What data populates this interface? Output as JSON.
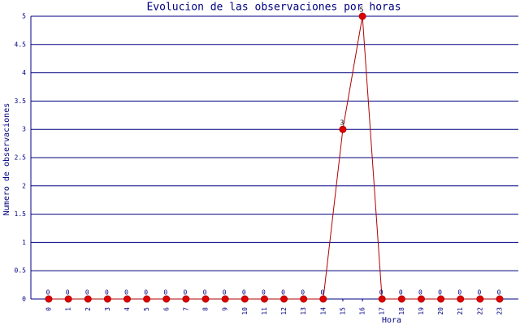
{
  "chart_data": {
    "type": "line",
    "title": "Evolucion de las observaciones por horas",
    "x_label": "Hora",
    "y_label": "Numero de observaciones",
    "categories": [
      "0",
      "1",
      "2",
      "3",
      "4",
      "5",
      "6",
      "7",
      "8",
      "9",
      "10",
      "11",
      "12",
      "13",
      "14",
      "15",
      "16",
      "17",
      "18",
      "19",
      "20",
      "21",
      "22",
      "23"
    ],
    "series": [
      {
        "name": "observaciones",
        "color": "#b00000",
        "values": [
          0,
          0,
          0,
          0,
          0,
          0,
          0,
          0,
          0,
          0,
          0,
          0,
          0,
          0,
          0,
          3,
          5,
          0,
          0,
          0,
          0,
          0,
          0,
          0
        ]
      }
    ],
    "ylim": [
      0,
      5
    ],
    "yticks": [
      0,
      0.5,
      1,
      1.5,
      2,
      2.5,
      3,
      3.5,
      4,
      4.5,
      5
    ],
    "grid": true
  }
}
